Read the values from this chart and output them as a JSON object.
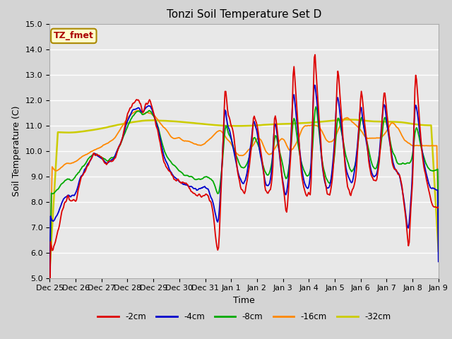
{
  "title": "Tonzi Soil Temperature Set D",
  "xlabel": "Time",
  "ylabel": "Soil Temperature (C)",
  "ylim": [
    5.0,
    15.0
  ],
  "yticks": [
    5.0,
    6.0,
    7.0,
    8.0,
    9.0,
    10.0,
    11.0,
    12.0,
    13.0,
    14.0,
    15.0
  ],
  "fig_bg": "#d4d4d4",
  "plot_bg": "#e8e8e8",
  "legend_label": "TZ_fmet",
  "legend_bg": "#ffffcc",
  "legend_border": "#aa8800",
  "series": {
    "neg2cm": {
      "color": "#dd0000",
      "label": "-2cm",
      "lw": 1.3
    },
    "neg4cm": {
      "color": "#0000cc",
      "label": "-4cm",
      "lw": 1.3
    },
    "neg8cm": {
      "color": "#00aa00",
      "label": "-8cm",
      "lw": 1.3
    },
    "neg16cm": {
      "color": "#ff8800",
      "label": "-16cm",
      "lw": 1.3
    },
    "neg32cm": {
      "color": "#cccc00",
      "label": "-32cm",
      "lw": 1.8
    }
  },
  "xtick_labels": [
    "Dec 25",
    "Dec 26",
    "Dec 27",
    "Dec 28",
    "Dec 29",
    "Dec 30",
    "Dec 31",
    "Jan 1",
    "Jan 2",
    "Jan 3",
    "Jan 4",
    "Jan 5",
    "Jan 6",
    "Jan 7",
    "Jan 8",
    "Jan 9"
  ],
  "title_fontsize": 11,
  "axis_label_fontsize": 9,
  "tick_fontsize": 8
}
